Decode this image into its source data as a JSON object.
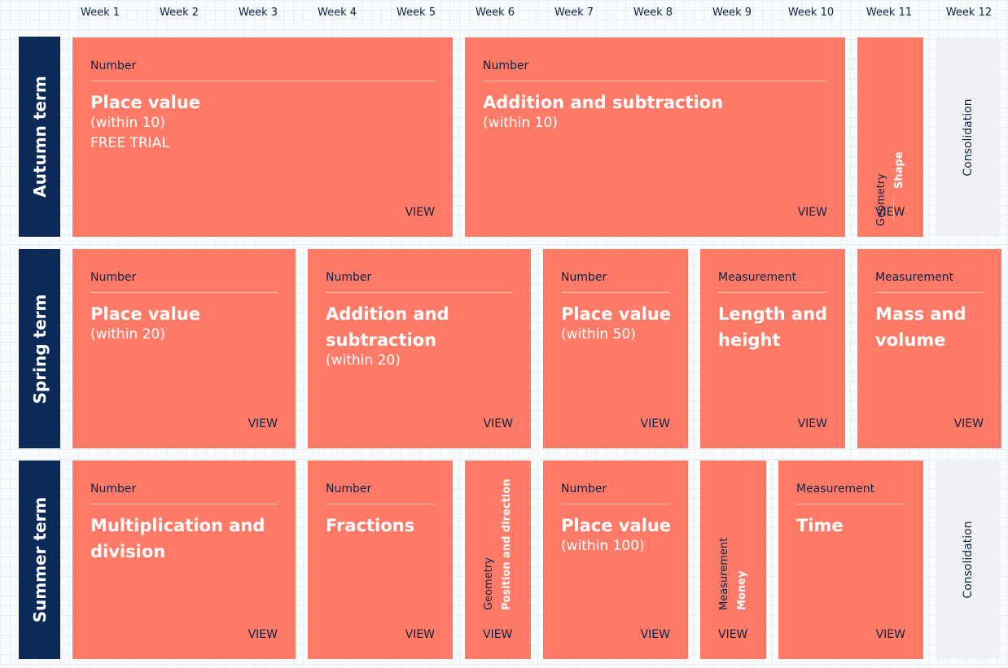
{
  "weeks": [
    "Week 1",
    "Week 2",
    "Week 3",
    "Week 4",
    "Week 5",
    "Week 6",
    "Week 7",
    "Week 8",
    "Week 9",
    "Week 10",
    "Week 11",
    "Week 12"
  ],
  "terms": {
    "autumn": "Autumn term",
    "spring": "Spring term",
    "summer": "Summer term"
  },
  "view_label": "VIEW",
  "consolidation_label": "Consolidation",
  "autumn": {
    "place_value": {
      "strand": "Number",
      "title": "Place value",
      "sub": "(within 10)",
      "extra": "FREE TRIAL"
    },
    "add_sub": {
      "strand": "Number",
      "title": "Addition and subtraction",
      "sub": "(within 10)"
    },
    "shape": {
      "strand": "Geometry",
      "title": "Shape"
    }
  },
  "spring": {
    "place_value": {
      "strand": "Number",
      "title": "Place value",
      "sub": "(within 20)"
    },
    "add_sub": {
      "strand": "Number",
      "title_l1": "Addition and",
      "title_l2": "subtraction",
      "sub": "(within 20)"
    },
    "place_value_50": {
      "strand": "Number",
      "title": "Place value",
      "sub": "(within 50)"
    },
    "length": {
      "strand": "Measurement",
      "title_l1": "Length and",
      "title_l2": "height"
    },
    "mass": {
      "strand": "Measurement",
      "title_l1": "Mass and",
      "title_l2": "volume"
    }
  },
  "summer": {
    "mult_div": {
      "strand": "Number",
      "title_l1": "Multiplication and",
      "title_l2": "division"
    },
    "fractions": {
      "strand": "Number",
      "title": "Fractions"
    },
    "position": {
      "strand": "Geometry",
      "title": "Position and direction"
    },
    "place_value_100": {
      "strand": "Number",
      "title": "Place value",
      "sub": "(within 100)"
    },
    "money": {
      "strand": "Measurement",
      "title": "Money"
    },
    "time": {
      "strand": "Measurement",
      "title": "Time"
    }
  }
}
